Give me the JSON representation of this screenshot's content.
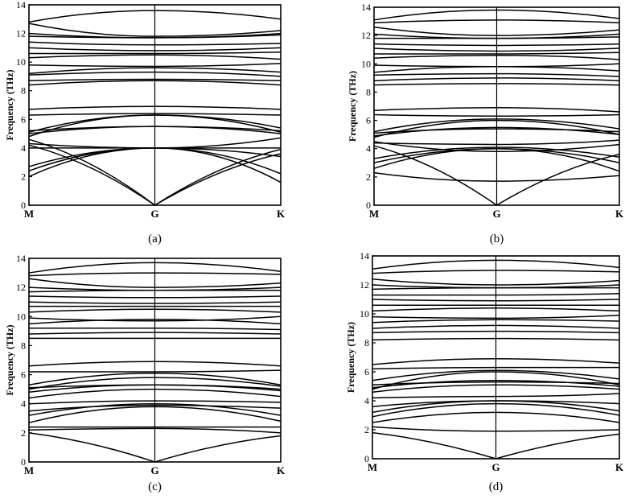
{
  "chart_data": [
    {
      "type": "line",
      "caption": "(a)",
      "ylabel": "Frequency (THz)",
      "ylim": [
        0,
        14
      ],
      "yticks": [
        "0",
        "2",
        "4",
        "6",
        "8",
        "10",
        "12",
        "14"
      ],
      "xticks": [
        "M",
        "G",
        "K"
      ],
      "x": [
        0,
        0.5,
        1
      ],
      "series": [
        {
          "values": [
            4.2,
            0.0,
            3.9
          ]
        },
        {
          "values": [
            4.6,
            0.0,
            3.6
          ]
        },
        {
          "values": [
            2.0,
            4.0,
            1.6
          ]
        },
        {
          "values": [
            2.4,
            4.0,
            2.2
          ]
        },
        {
          "values": [
            2.7,
            4.0,
            3.4
          ]
        },
        {
          "values": [
            4.3,
            4.0,
            4.7
          ]
        },
        {
          "values": [
            4.0,
            4.0,
            4.0
          ]
        },
        {
          "values": [
            5.0,
            5.5,
            5.0
          ]
        },
        {
          "values": [
            5.2,
            5.5,
            5.2
          ]
        },
        {
          "values": [
            5.1,
            6.3,
            5.4
          ]
        },
        {
          "values": [
            6.3,
            6.4,
            6.3
          ]
        },
        {
          "values": [
            6.7,
            6.9,
            6.7
          ]
        },
        {
          "values": [
            4.8,
            6.3,
            5.1
          ]
        },
        {
          "values": [
            8.4,
            8.7,
            8.4
          ]
        },
        {
          "values": [
            8.7,
            8.8,
            8.7
          ]
        },
        {
          "values": [
            9.1,
            9.3,
            9.0
          ]
        },
        {
          "values": [
            9.2,
            9.6,
            9.3
          ]
        },
        {
          "values": [
            9.8,
            9.7,
            9.9
          ]
        },
        {
          "values": [
            10.3,
            10.5,
            10.2
          ]
        },
        {
          "values": [
            10.6,
            10.6,
            10.7
          ]
        },
        {
          "values": [
            11.0,
            10.8,
            11.0
          ]
        },
        {
          "values": [
            11.4,
            11.2,
            11.3
          ]
        },
        {
          "values": [
            11.8,
            11.7,
            11.9
          ]
        },
        {
          "values": [
            12.0,
            11.7,
            12.0
          ]
        },
        {
          "values": [
            12.7,
            11.8,
            12.2
          ]
        },
        {
          "values": [
            12.8,
            13.6,
            13.0
          ]
        }
      ]
    },
    {
      "type": "line",
      "caption": "(b)",
      "ylabel": "Frequency (THz)",
      "ylim": [
        0,
        14
      ],
      "yticks": [
        "0",
        "2",
        "4",
        "6",
        "8",
        "10",
        "12",
        "14"
      ],
      "xticks": [
        "M",
        "G",
        "K"
      ],
      "x": [
        0,
        0.5,
        1
      ],
      "series": [
        {
          "values": [
            4.2,
            0.0,
            3.6
          ]
        },
        {
          "values": [
            2.3,
            1.7,
            2.1
          ]
        },
        {
          "values": [
            2.6,
            4.0,
            2.4
          ]
        },
        {
          "values": [
            3.0,
            4.0,
            3.0
          ]
        },
        {
          "values": [
            3.3,
            4.1,
            3.4
          ]
        },
        {
          "values": [
            4.4,
            4.3,
            4.6
          ]
        },
        {
          "values": [
            4.5,
            3.8,
            4.3
          ]
        },
        {
          "values": [
            4.9,
            5.5,
            5.0
          ]
        },
        {
          "values": [
            5.1,
            5.4,
            5.2
          ]
        },
        {
          "values": [
            5.2,
            6.1,
            5.4
          ]
        },
        {
          "values": [
            6.4,
            6.3,
            6.4
          ]
        },
        {
          "values": [
            6.7,
            6.9,
            6.6
          ]
        },
        {
          "values": [
            4.8,
            6.0,
            5.0
          ]
        },
        {
          "values": [
            8.5,
            8.6,
            8.5
          ]
        },
        {
          "values": [
            8.8,
            9.0,
            8.8
          ]
        },
        {
          "values": [
            9.2,
            9.3,
            9.1
          ]
        },
        {
          "values": [
            9.4,
            9.8,
            9.5
          ]
        },
        {
          "values": [
            9.9,
            9.8,
            10.0
          ]
        },
        {
          "values": [
            10.4,
            10.6,
            10.3
          ]
        },
        {
          "values": [
            10.7,
            10.7,
            10.8
          ]
        },
        {
          "values": [
            11.1,
            10.9,
            11.1
          ]
        },
        {
          "values": [
            11.4,
            11.3,
            11.4
          ]
        },
        {
          "values": [
            11.8,
            11.8,
            11.9
          ]
        },
        {
          "values": [
            12.1,
            11.8,
            12.1
          ]
        },
        {
          "values": [
            12.6,
            12.0,
            12.4
          ]
        },
        {
          "values": [
            12.9,
            13.1,
            12.9
          ]
        },
        {
          "values": [
            13.1,
            13.8,
            13.2
          ]
        }
      ]
    },
    {
      "type": "line",
      "caption": "(c)",
      "ylabel": "Frequency (THz)",
      "ylim": [
        0,
        14
      ],
      "yticks": [
        "0",
        "2",
        "4",
        "6",
        "8",
        "10",
        "12",
        "14"
      ],
      "xticks": [
        "M",
        "G",
        "K"
      ],
      "x": [
        0,
        0.5,
        1
      ],
      "series": [
        {
          "values": [
            2.0,
            0.0,
            1.8
          ]
        },
        {
          "values": [
            2.2,
            2.3,
            2.0
          ]
        },
        {
          "values": [
            2.4,
            2.4,
            2.4
          ]
        },
        {
          "values": [
            2.7,
            3.8,
            2.8
          ]
        },
        {
          "values": [
            3.2,
            4.0,
            3.2
          ]
        },
        {
          "values": [
            3.5,
            3.9,
            3.7
          ]
        },
        {
          "values": [
            4.0,
            4.2,
            4.1
          ]
        },
        {
          "values": [
            4.4,
            5.0,
            4.5
          ]
        },
        {
          "values": [
            4.8,
            5.3,
            4.9
          ]
        },
        {
          "values": [
            5.1,
            5.3,
            5.0
          ]
        },
        {
          "values": [
            5.3,
            6.1,
            5.3
          ]
        },
        {
          "values": [
            6.2,
            6.2,
            6.3
          ]
        },
        {
          "values": [
            6.6,
            6.9,
            6.6
          ]
        },
        {
          "values": [
            5.0,
            5.8,
            5.2
          ]
        },
        {
          "values": [
            8.5,
            8.5,
            8.5
          ]
        },
        {
          "values": [
            8.8,
            8.9,
            8.8
          ]
        },
        {
          "values": [
            9.2,
            9.2,
            9.1
          ]
        },
        {
          "values": [
            9.5,
            9.8,
            9.5
          ]
        },
        {
          "values": [
            9.9,
            9.7,
            10.0
          ]
        },
        {
          "values": [
            10.3,
            10.5,
            10.3
          ]
        },
        {
          "values": [
            10.7,
            10.7,
            10.7
          ]
        },
        {
          "values": [
            11.0,
            10.9,
            11.0
          ]
        },
        {
          "values": [
            11.4,
            11.3,
            11.4
          ]
        },
        {
          "values": [
            11.7,
            11.8,
            11.8
          ]
        },
        {
          "values": [
            12.0,
            11.8,
            12.0
          ]
        },
        {
          "values": [
            12.6,
            12.0,
            12.3
          ]
        },
        {
          "values": [
            12.8,
            13.0,
            12.9
          ]
        },
        {
          "values": [
            13.0,
            13.7,
            13.1
          ]
        }
      ]
    },
    {
      "type": "line",
      "caption": "(d)",
      "ylabel": "Frequency (THz)",
      "ylim": [
        0,
        14
      ],
      "yticks": [
        "0",
        "2",
        "4",
        "6",
        "8",
        "10",
        "12",
        "14"
      ],
      "xticks": [
        "M",
        "G",
        "K"
      ],
      "x": [
        0,
        0.5,
        1
      ],
      "series": [
        {
          "values": [
            1.8,
            0.0,
            1.7
          ]
        },
        {
          "values": [
            2.2,
            1.9,
            2.0
          ]
        },
        {
          "values": [
            2.5,
            3.2,
            2.5
          ]
        },
        {
          "values": [
            2.9,
            3.8,
            3.0
          ]
        },
        {
          "values": [
            3.2,
            4.0,
            3.3
          ]
        },
        {
          "values": [
            3.6,
            4.0,
            3.8
          ]
        },
        {
          "values": [
            4.2,
            4.3,
            4.5
          ]
        },
        {
          "values": [
            4.6,
            5.1,
            4.8
          ]
        },
        {
          "values": [
            4.9,
            5.4,
            5.0
          ]
        },
        {
          "values": [
            5.1,
            5.3,
            5.2
          ]
        },
        {
          "values": [
            5.4,
            6.1,
            5.5
          ]
        },
        {
          "values": [
            6.2,
            6.3,
            6.3
          ]
        },
        {
          "values": [
            6.5,
            6.9,
            6.6
          ]
        },
        {
          "values": [
            4.8,
            6.0,
            5.1
          ]
        },
        {
          "values": [
            8.2,
            8.3,
            8.2
          ]
        },
        {
          "values": [
            8.7,
            8.8,
            8.7
          ]
        },
        {
          "values": [
            9.0,
            9.2,
            9.0
          ]
        },
        {
          "values": [
            9.4,
            9.6,
            9.5
          ]
        },
        {
          "values": [
            9.8,
            9.7,
            9.9
          ]
        },
        {
          "values": [
            10.2,
            10.4,
            10.2
          ]
        },
        {
          "values": [
            10.6,
            10.6,
            10.6
          ]
        },
        {
          "values": [
            11.0,
            10.9,
            11.0
          ]
        },
        {
          "values": [
            11.3,
            11.3,
            11.4
          ]
        },
        {
          "values": [
            11.7,
            11.8,
            11.8
          ]
        },
        {
          "values": [
            12.0,
            11.8,
            12.0
          ]
        },
        {
          "values": [
            12.4,
            12.0,
            12.3
          ]
        },
        {
          "values": [
            12.8,
            13.0,
            12.9
          ]
        },
        {
          "values": [
            13.1,
            13.7,
            13.2
          ]
        }
      ]
    }
  ]
}
